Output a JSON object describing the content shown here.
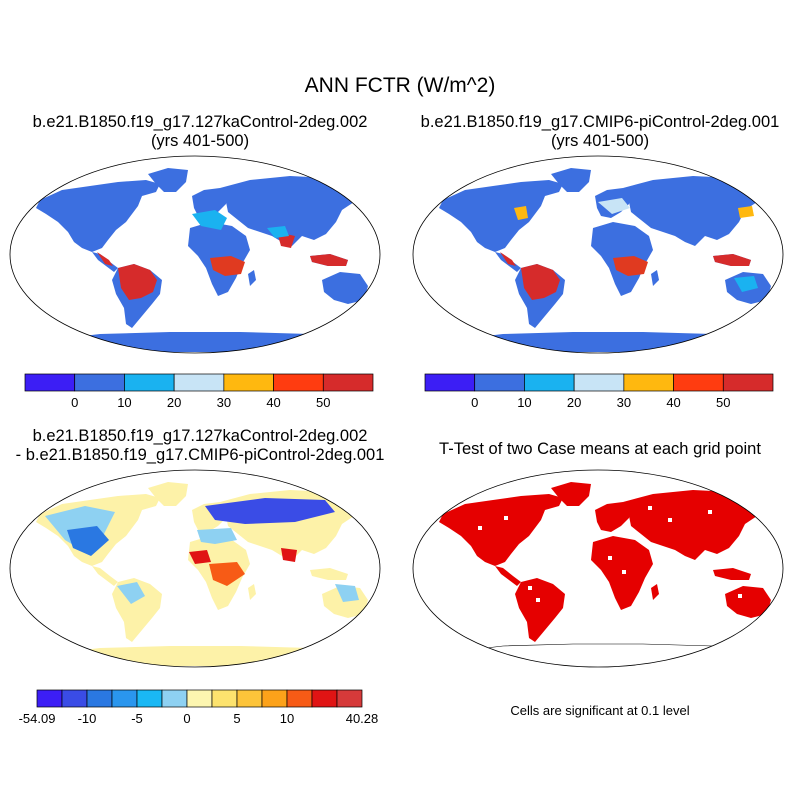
{
  "title": "ANN FCTR (W/m^2)",
  "panels": [
    {
      "title_line1": "b.e21.B1850.f19_g17.127kaControl-2deg.002",
      "title_line2": "(yrs 401-500)",
      "type": "map",
      "colorbar": {
        "colors": [
          "#3c1ef5",
          "#3c6fe0",
          "#1ab2f0",
          "#c8e4f6",
          "#ffb80f",
          "#ff3c10",
          "#d62b2b"
        ],
        "labels": [
          "0",
          "10",
          "20",
          "30",
          "40",
          "50"
        ]
      }
    },
    {
      "title_line1": "b.e21.B1850.f19_g17.CMIP6-piControl-2deg.001",
      "title_line2": "(yrs 401-500)",
      "type": "map",
      "colorbar": {
        "colors": [
          "#3c1ef5",
          "#3c6fe0",
          "#1ab2f0",
          "#c8e4f6",
          "#ffb80f",
          "#ff3c10",
          "#d62b2b"
        ],
        "labels": [
          "0",
          "10",
          "20",
          "30",
          "40",
          "50"
        ]
      }
    },
    {
      "title_line1": "b.e21.B1850.f19_g17.127kaControl-2deg.002",
      "title_line2": "- b.e21.B1850.f19_g17.CMIP6-piControl-2deg.001",
      "type": "difference-map",
      "colorbar": {
        "colors": [
          "#3c1ef5",
          "#3a4ce6",
          "#2a78e2",
          "#2a96ee",
          "#1ab8f4",
          "#8ed1f2",
          "#fdf6b0",
          "#fde36e",
          "#fdc43a",
          "#fca21a",
          "#f75b16",
          "#e01414",
          "#d63a3a"
        ],
        "labels": [
          "-54.09",
          "-10",
          "-5",
          "0",
          "5",
          "10",
          "40.28"
        ]
      }
    },
    {
      "title_line1": "T-Test of two Case means at each grid point",
      "type": "significance-map",
      "significant_color": "#e50000",
      "note": "Cells are significant at 0.1 level"
    }
  ]
}
